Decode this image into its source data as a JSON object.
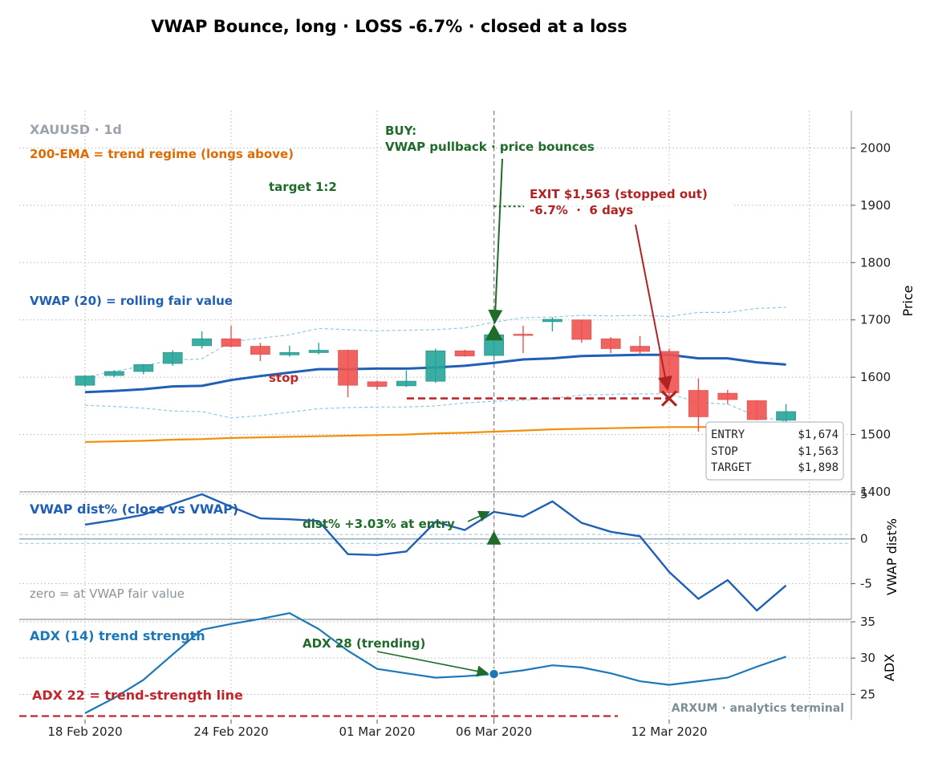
{
  "chart_data": {
    "type": "candlestick",
    "title": "VWAP Bounce, long · LOSS -6.7% · closed at a loss",
    "symbol_label": "XAUUSD · 1d",
    "x_tick_labels": [
      "18 Feb 2020",
      "24 Feb 2020",
      "01 Mar 2020",
      "06 Mar 2020",
      "12 Mar 2020"
    ],
    "x_tick_index": [
      0,
      5,
      10,
      14,
      20
    ],
    "candles": [
      {
        "o": 1586,
        "h": 1603,
        "l": 1583,
        "c": 1602
      },
      {
        "o": 1603,
        "h": 1612,
        "l": 1600,
        "c": 1610
      },
      {
        "o": 1610,
        "h": 1623,
        "l": 1605,
        "c": 1622
      },
      {
        "o": 1624,
        "h": 1647,
        "l": 1620,
        "c": 1643
      },
      {
        "o": 1655,
        "h": 1680,
        "l": 1650,
        "c": 1667
      },
      {
        "o": 1667,
        "h": 1690,
        "l": 1652,
        "c": 1654
      },
      {
        "o": 1654,
        "h": 1660,
        "l": 1628,
        "c": 1640
      },
      {
        "o": 1639,
        "h": 1655,
        "l": 1636,
        "c": 1643
      },
      {
        "o": 1643,
        "h": 1660,
        "l": 1640,
        "c": 1647
      },
      {
        "o": 1647,
        "h": 1648,
        "l": 1565,
        "c": 1586
      },
      {
        "o": 1592,
        "h": 1594,
        "l": 1578,
        "c": 1584
      },
      {
        "o": 1585,
        "h": 1612,
        "l": 1583,
        "c": 1593
      },
      {
        "o": 1593,
        "h": 1650,
        "l": 1590,
        "c": 1646
      },
      {
        "o": 1646,
        "h": 1648,
        "l": 1636,
        "c": 1637
      },
      {
        "o": 1638,
        "h": 1676,
        "l": 1636,
        "c": 1674
      },
      {
        "o": 1675,
        "h": 1690,
        "l": 1642,
        "c": 1674
      },
      {
        "o": 1697,
        "h": 1705,
        "l": 1680,
        "c": 1701
      },
      {
        "o": 1700,
        "h": 1700,
        "l": 1660,
        "c": 1666
      },
      {
        "o": 1667,
        "h": 1670,
        "l": 1642,
        "c": 1650
      },
      {
        "o": 1654,
        "h": 1672,
        "l": 1640,
        "c": 1645
      },
      {
        "o": 1645,
        "h": 1650,
        "l": 1563,
        "c": 1573
      },
      {
        "o": 1577,
        "h": 1598,
        "l": 1505,
        "c": 1531
      },
      {
        "o": 1572,
        "h": 1578,
        "l": 1553,
        "c": 1561
      },
      {
        "o": 1559,
        "h": 1560,
        "l": 1525,
        "c": 1526
      },
      {
        "o": 1525,
        "h": 1553,
        "l": 1515,
        "c": 1540
      }
    ],
    "vwap": [
      1574,
      1576,
      1579,
      1584,
      1585,
      1595,
      1602,
      1608,
      1614,
      1614,
      1615,
      1615,
      1617,
      1620,
      1625,
      1631,
      1633,
      1637,
      1638,
      1639,
      1639,
      1633,
      1633,
      1626,
      1622
    ],
    "vwap_upper_band": [
      1600,
      1610,
      1620,
      1630,
      1632,
      1662,
      1668,
      1674,
      1685,
      1683,
      1681,
      1682,
      1683,
      1686,
      1696,
      1704,
      1705,
      1708,
      1707,
      1708,
      1706,
      1713,
      1713,
      1720,
      1722
    ],
    "vwap_lower_band": [
      1551,
      1549,
      1546,
      1541,
      1540,
      1529,
      1533,
      1539,
      1545,
      1547,
      1548,
      1548,
      1550,
      1555,
      1558,
      1560,
      1563,
      1569,
      1570,
      1571,
      1571,
      1556,
      1553,
      1532,
      1523
    ],
    "ema200": [
      1487,
      1488,
      1489,
      1491,
      1492,
      1494,
      1495,
      1496,
      1497,
      1498,
      1499,
      1500,
      1502,
      1503,
      1505,
      1507,
      1509,
      1510,
      1511,
      1512,
      1513,
      1513,
      1514,
      1514,
      1515
    ],
    "price_ylim": [
      1400,
      2065
    ],
    "price_yticks": [
      1400,
      1500,
      1600,
      1700,
      1800,
      1900,
      2000
    ],
    "price_ylabel": "Price",
    "stop_price": 1563,
    "target_price": 1898,
    "entry_index": 14,
    "entry_price": 1674,
    "exit_index": 20,
    "exit_price": 1563,
    "vwap_dist": [
      1.6,
      2.1,
      2.7,
      3.9,
      5.0,
      3.6,
      2.3,
      2.2,
      2.0,
      -1.7,
      -1.8,
      -1.4,
      1.9,
      1.0,
      3.03,
      2.5,
      4.2,
      1.8,
      0.8,
      0.3,
      -3.7,
      -6.7,
      -4.6,
      -8.0,
      -5.2
    ],
    "dist_ylim": [
      -9.0,
      5.0
    ],
    "dist_yticks": [
      -5,
      0,
      5
    ],
    "dist_ylabel": "VWAP dist%",
    "adx": [
      22.4,
      24.5,
      27.0,
      30.5,
      33.9,
      34.7,
      35.4,
      36.2,
      34.0,
      31.0,
      28.5,
      27.9,
      27.3,
      27.5,
      27.8,
      28.3,
      29.0,
      28.7,
      27.9,
      26.8,
      26.3,
      26.8,
      27.3,
      28.8,
      30.2
    ],
    "adx_ylim": [
      21.5,
      35.0
    ],
    "adx_yticks": [
      25,
      30,
      35
    ],
    "adx_ylabel": "ADX",
    "adx_threshold": 22
  },
  "annotations": {
    "ema_label": "200-EMA = trend regime (longs above)",
    "target_label": "target 1:2",
    "buy_label_1": "BUY:",
    "buy_label_2": "VWAP pullback · price bounces",
    "exit_label_1": "EXIT $1,563 (stopped out)",
    "exit_label_2": "-6.7%  ·  6 days",
    "vwap_label": "VWAP (20) = rolling fair value",
    "stop_label": "stop",
    "dist_title": "VWAP dist% (close vs VWAP)",
    "dist_entry_label": "dist% +3.03% at entry",
    "dist_zero_label": "zero = at VWAP fair value",
    "adx_title": "ADX (14) trend strength",
    "adx_entry_label": "ADX 28 (trending)",
    "adx_threshold_label": "ADX 22 = trend-strength line",
    "watermark": "ARXUM · analytics terminal"
  },
  "trade_box": {
    "rows": [
      {
        "k": "ENTRY",
        "v": "$1,674"
      },
      {
        "k": "STOP",
        "v": "$1,563"
      },
      {
        "k": "TARGET",
        "v": "$1,898"
      }
    ]
  },
  "colors": {
    "up": "#26a69a",
    "down": "#ef5350",
    "vwap": "#1f5fb4",
    "band": "#8ec8e8",
    "ema": "#f0900c",
    "stop": "#c0272d",
    "buy": "#1e6b2a",
    "exit": "#b22222",
    "grid": "#b5b5b5",
    "dist_line": "#1f5fb4",
    "adx_line": "#1a78b8",
    "muted": "#9aa3ab"
  }
}
